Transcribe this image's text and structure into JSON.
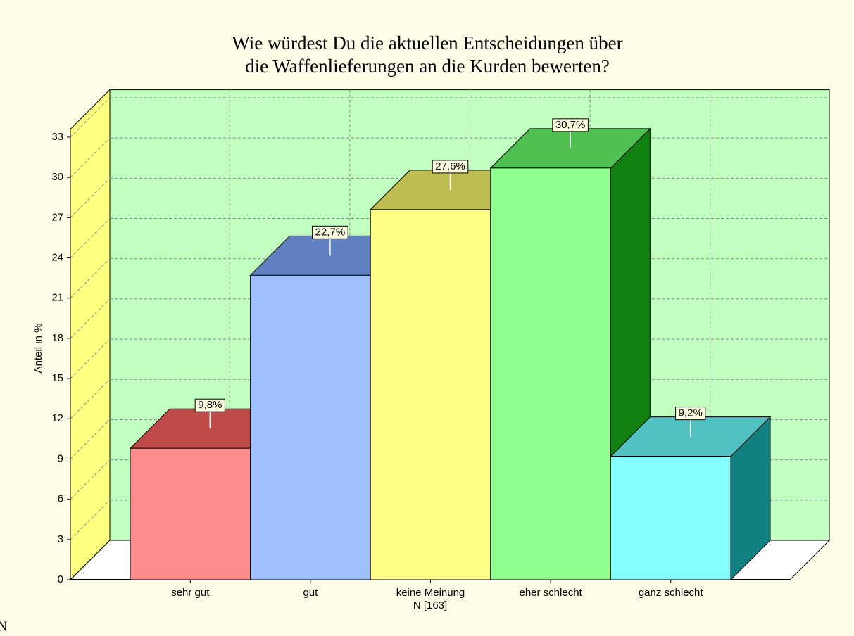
{
  "chart_data": {
    "type": "bar3d",
    "title": [
      "Wie würdest Du die aktuellen Entscheidungen über",
      "die Waffenlieferungen an die Kurden bewerten?"
    ],
    "y_label": "Anteil in %",
    "note": "N [163]",
    "corner_text": "N",
    "categories": [
      "sehr gut",
      "gut",
      "keine Meinung",
      "eher schlecht",
      "ganz schlecht"
    ],
    "values": [
      9.8,
      22.7,
      27.6,
      30.7,
      9.2
    ],
    "value_labels": [
      "9,8%",
      "22,7%",
      "27,6%",
      "30,7%",
      "9,2%"
    ],
    "colors": [
      "#ff8c8c",
      "#a0c0ff",
      "#ffff88",
      "#90ff90",
      "#88ffff"
    ],
    "top_colors": [
      "#c04a4a",
      "#6080c0",
      "#c0bd50",
      "#50c050",
      "#50c0c0"
    ],
    "side_colors": [
      "#902020",
      "#304890",
      "#909020",
      "#108010",
      "#108080"
    ],
    "ylim": [
      0,
      33.6
    ],
    "yticks": [
      0,
      3,
      6,
      9,
      12,
      15,
      18,
      21,
      24,
      27,
      30,
      33
    ],
    "grid": true
  }
}
